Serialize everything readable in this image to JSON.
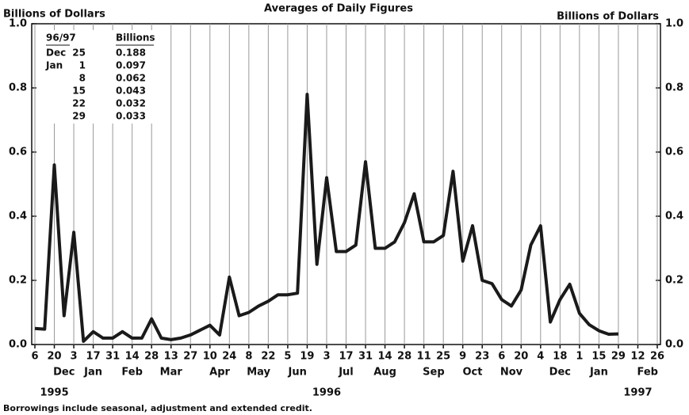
{
  "chart_data": {
    "type": "line",
    "title": "Averages of Daily Figures",
    "y_label": "Billions of Dollars",
    "y2_label": "Billions of Dollars",
    "footnote": "Borrowings include seasonal, adjustment and extended credit.",
    "categories": [
      "6",
      null,
      "20",
      null,
      "3",
      null,
      "17",
      null,
      "31",
      null,
      "14",
      null,
      "28",
      null,
      "13",
      null,
      "27",
      null,
      "10",
      null,
      "24",
      null,
      "8",
      null,
      "22",
      null,
      "5",
      null,
      "19",
      null,
      "3",
      null,
      "17",
      null,
      "31",
      null,
      "14",
      null,
      "28",
      null,
      "11",
      null,
      "25",
      null,
      "9",
      null,
      "23",
      null,
      "6",
      null,
      "20",
      null,
      "4",
      null,
      "18",
      null,
      "1",
      null,
      "15",
      null,
      "29",
      null,
      "12",
      null,
      "26"
    ],
    "months": [
      null,
      null,
      null,
      "Dec",
      null,
      null,
      "Jan",
      null,
      null,
      null,
      "Feb",
      null,
      null,
      null,
      "Mar",
      null,
      null,
      null,
      null,
      "Apr",
      null,
      null,
      null,
      "May",
      null,
      null,
      null,
      "Jun",
      null,
      null,
      null,
      null,
      "Jul",
      null,
      null,
      null,
      "Aug",
      null,
      null,
      null,
      null,
      "Sep",
      null,
      null,
      null,
      "Oct",
      null,
      null,
      null,
      "Nov",
      null,
      null,
      null,
      null,
      "Dec",
      null,
      null,
      null,
      "Jan",
      null,
      null,
      null,
      null,
      "Feb",
      null
    ],
    "years": [
      null,
      null,
      "1995",
      null,
      null,
      null,
      null,
      null,
      null,
      null,
      null,
      null,
      null,
      null,
      null,
      null,
      null,
      null,
      null,
      null,
      null,
      null,
      null,
      null,
      null,
      null,
      null,
      null,
      null,
      null,
      "1996",
      null,
      null,
      null,
      null,
      null,
      null,
      null,
      null,
      null,
      null,
      null,
      null,
      null,
      null,
      null,
      null,
      null,
      null,
      null,
      null,
      null,
      null,
      null,
      null,
      null,
      null,
      null,
      null,
      null,
      null,
      null,
      "1997",
      null,
      null
    ],
    "series": [
      {
        "color": "#1a1a1a",
        "values": [
          0.05,
          0.048,
          0.56,
          0.09,
          0.35,
          0.01,
          0.04,
          0.02,
          0.02,
          0.04,
          0.02,
          0.02,
          0.08,
          0.02,
          0.015,
          0.02,
          0.03,
          0.045,
          0.06,
          0.03,
          0.21,
          0.09,
          0.1,
          0.12,
          0.135,
          0.155,
          0.155,
          0.16,
          0.78,
          0.25,
          0.52,
          0.29,
          0.29,
          0.31,
          0.57,
          0.3,
          0.3,
          0.32,
          0.38,
          0.47,
          0.32,
          0.32,
          0.34,
          0.54,
          0.26,
          0.37,
          0.2,
          0.19,
          0.14,
          0.12,
          0.17,
          0.31,
          0.37,
          0.07,
          0.14,
          0.188,
          0.097,
          0.062,
          0.043,
          0.032,
          0.033,
          null,
          null,
          null,
          null
        ]
      }
    ],
    "ylim": [
      0,
      1
    ],
    "yticks": [
      {
        "value": 0,
        "label": "0.0"
      },
      0.2,
      0.4,
      0.6,
      0.8,
      {
        "value": 1,
        "label": "1.0"
      }
    ],
    "y2lim": [
      0,
      1
    ],
    "y2ticks": [
      {
        "value": 0,
        "label": "0.0"
      },
      0.2,
      0.4,
      0.6,
      0.8,
      {
        "value": 1,
        "label": "1.0"
      }
    ],
    "grid": true,
    "inset_table": {
      "header": [
        "96/97",
        "Billions"
      ],
      "rows": [
        {
          "month": "Dec",
          "day": "25",
          "billions": 0.188
        },
        {
          "month": "Jan",
          "day": "1",
          "billions": 0.097
        },
        {
          "day": "8",
          "billions": 0.062
        },
        {
          "day": "15",
          "billions": 0.043
        },
        {
          "day": "22",
          "billions": 0.032
        },
        {
          "day": "29",
          "billions": 0.033
        }
      ]
    }
  }
}
